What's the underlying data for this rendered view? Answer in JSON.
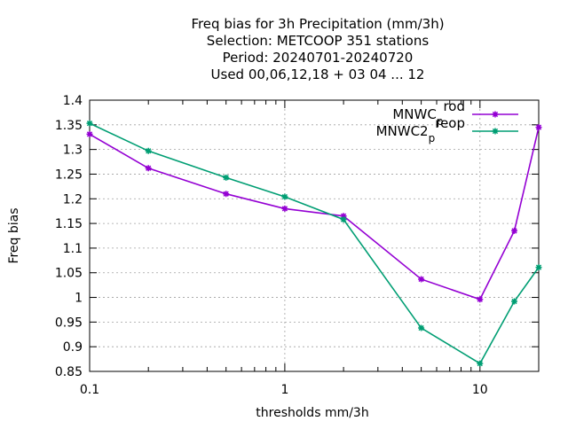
{
  "chart_data": {
    "type": "line",
    "title_lines": [
      "Freq bias  for 3h Precipitation (mm/3h)",
      "Selection: METCOOP    351 stations",
      "Period: 20240701-20240720",
      "Used  00,06,12,18 + 03 04 ... 12"
    ],
    "xlabel": "thresholds mm/3h",
    "ylabel": "Freq bias",
    "x_scale": "log",
    "xlim": [
      0.1,
      20
    ],
    "ylim": [
      0.85,
      1.4
    ],
    "xticks": [
      0.1,
      1,
      10
    ],
    "xtick_labels": [
      "0.1",
      "1",
      "10"
    ],
    "yticks": [
      0.85,
      0.9,
      0.95,
      1,
      1.05,
      1.1,
      1.15,
      1.2,
      1.25,
      1.3,
      1.35,
      1.4
    ],
    "ytick_labels": [
      "0.85",
      "0.9",
      "0.95",
      "1",
      "1.05",
      "1.1",
      "1.15",
      "1.2",
      "1.25",
      "1.3",
      "1.35",
      "1.4"
    ],
    "grid": true,
    "legend_placement": "top-right",
    "x": [
      0.1,
      0.2,
      0.5,
      1,
      2,
      5,
      10,
      15,
      20
    ],
    "series": [
      {
        "name": "MNWC_prod",
        "legend_main": "MNWC",
        "legend_sub": "p",
        "legend_rest": "rod",
        "color": "#9400d3",
        "values": [
          1.331,
          1.262,
          1.21,
          1.18,
          1.165,
          1.037,
          0.996,
          1.135,
          1.345
        ]
      },
      {
        "name": "MNWC2_preop",
        "legend_main": "MNWC2",
        "legend_sub": "p",
        "legend_rest": "reop",
        "color": "#009e73",
        "values": [
          1.353,
          1.297,
          1.243,
          1.204,
          1.158,
          0.938,
          0.866,
          0.992,
          1.061
        ]
      }
    ]
  }
}
